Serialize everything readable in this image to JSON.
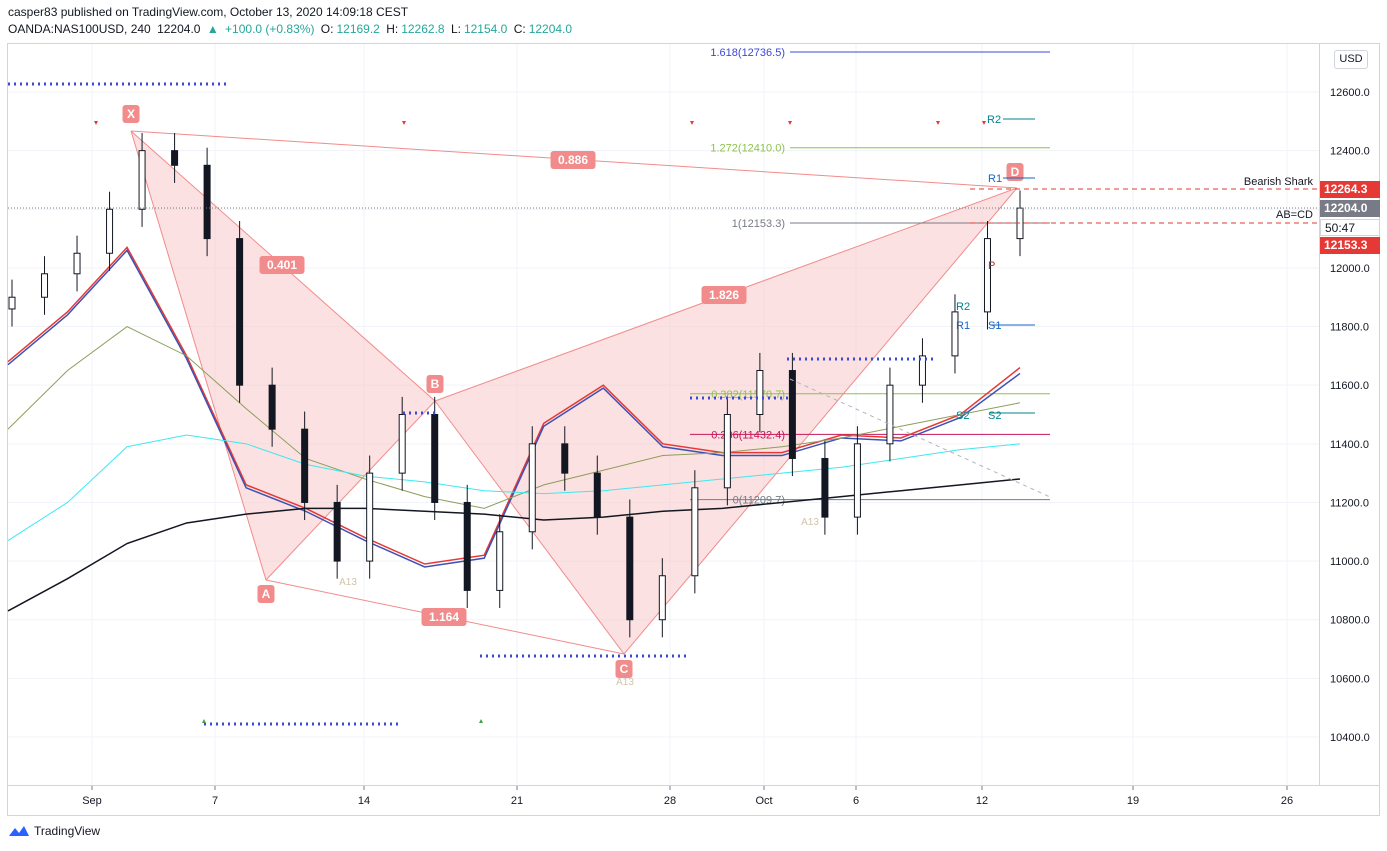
{
  "header": {
    "publisher_line": "casper83 published on TradingView.com, October 13, 2020 14:09:18 CEST",
    "symbol": "OANDA:NAS100USD, 240",
    "last": "12204.0",
    "change": "+100.0 (+0.83%)",
    "open_label": "O:",
    "open": "12169.2",
    "high_label": "H:",
    "high": "12262.8",
    "low_label": "L:",
    "low": "12154.0",
    "close_label": "C:",
    "close": "12204.0"
  },
  "currency_button": "USD",
  "footer": {
    "brand": "TradingView"
  },
  "price_tags": {
    "upper": "12264.3",
    "current": "12204.0",
    "countdown": "50:47",
    "lower": "12153.3"
  },
  "colors": {
    "pattern_fill": "#f8c9c9",
    "pattern_line": "#f28b8b",
    "label_bg": "#f28b8b",
    "ema_red": "#e53935",
    "ema_blue": "#3f51b5",
    "sma_green": "#8d9e5a",
    "sma_cyan": "#3ee8f0",
    "sma_black": "#131722",
    "tag_red": "#e53935",
    "tag_gray": "#787b86",
    "pivot_dots": "#3d48d6"
  },
  "chart_data": {
    "type": "line",
    "title": "",
    "xlabel": "",
    "ylabel": "",
    "currency": "USD",
    "ylim": [
      10200,
      12900
    ],
    "y_ticks": [
      10400,
      10600,
      10800,
      11000,
      11200,
      11400,
      11600,
      11800,
      12000,
      12200,
      12400,
      12600
    ],
    "x_ticks": [
      "Sep",
      "7",
      "14",
      "21",
      "28",
      "Oct",
      "6",
      "12",
      "19",
      "26"
    ],
    "harmonic_pattern": {
      "name": "Bearish Shark",
      "points": [
        {
          "label": "X",
          "date": "2020-09-03",
          "price": 12465
        },
        {
          "label": "A",
          "date": "2020-09-08",
          "price": 10935
        },
        {
          "label": "B",
          "date": "2020-09-16",
          "price": 11545
        },
        {
          "label": "C",
          "date": "2020-09-24",
          "price": 10680
        },
        {
          "label": "D",
          "date": "2020-10-13",
          "price": 12264
        }
      ],
      "ratios": [
        "0.886",
        "0.401",
        "1.826",
        "1.164"
      ]
    },
    "fib_levels": [
      {
        "label": "1.618(12736.5)",
        "price": 12736.5
      },
      {
        "label": "1.272(12410.0)",
        "price": 12410.0
      },
      {
        "label": "1(12153.3)",
        "price": 12153.3
      },
      {
        "label": "0.382(11570.7)",
        "price": 11570.7
      },
      {
        "label": "0.236(11432.4)",
        "price": 11432.4
      },
      {
        "label": "0(11209.7)",
        "price": 11209.7
      }
    ],
    "pivot_labels": [
      "R2",
      "R1",
      "P",
      "R2",
      "R1",
      "S1",
      "S2",
      "S2"
    ],
    "annotations": [
      "Bearish Shark",
      "AB=CD",
      "A13",
      "A13",
      "A13"
    ],
    "price_lines": [
      {
        "label": "12264.3",
        "price": 12264.3
      },
      {
        "label": "12204.0",
        "price": 12204.0
      },
      {
        "label": "12153.3",
        "price": 12153.3
      }
    ],
    "series": [
      {
        "values": [
          11680,
          11850,
          12070,
          11700,
          11260,
          11180,
          11080,
          10990,
          11020,
          11470,
          11600,
          11400,
          11370,
          11370,
          11430,
          11420,
          11500,
          11660
        ]
      },
      {
        "values": [
          11670,
          11840,
          12060,
          11690,
          11250,
          11170,
          11070,
          10980,
          11010,
          11460,
          11590,
          11390,
          11360,
          11360,
          11420,
          11410,
          11490,
          11640
        ]
      },
      {
        "values": [
          11450,
          11650,
          11800,
          11700,
          11520,
          11350,
          11280,
          11220,
          11180,
          11260,
          11310,
          11360,
          11370,
          11390,
          11420,
          11460,
          11500,
          11540
        ]
      },
      {
        "values": [
          11070,
          11200,
          11390,
          11430,
          11400,
          11330,
          11290,
          11270,
          11240,
          11230,
          11240,
          11260,
          11280,
          11300,
          11320,
          11350,
          11380,
          11400
        ]
      },
      {
        "values": [
          10830,
          10940,
          11060,
          11130,
          11160,
          11180,
          11180,
          11170,
          11160,
          11140,
          11150,
          11170,
          11180,
          11200,
          11220,
          11240,
          11260,
          11280
        ]
      }
    ],
    "x": [
      "Aug 28",
      "Aug 31",
      "Sep 3",
      "Sep 6",
      "Sep 9",
      "Sep 12",
      "Sep 15",
      "Sep 18",
      "Sep 21",
      "Sep 24",
      "Sep 27",
      "Sep 30",
      "Oct 3",
      "Oct 6",
      "Oct 8",
      "Oct 10",
      "Oct 12",
      "Oct 14"
    ],
    "candles_close": [
      11900,
      11980,
      12050,
      12200,
      12400,
      12350,
      12100,
      11600,
      11450,
      11200,
      11000,
      11300,
      11500,
      11200,
      10900,
      11100,
      11400,
      11300,
      11150,
      10800,
      10950,
      11250,
      11500,
      11650,
      11350,
      11150,
      11400,
      11600,
      11700,
      11850,
      12100,
      12204
    ]
  }
}
